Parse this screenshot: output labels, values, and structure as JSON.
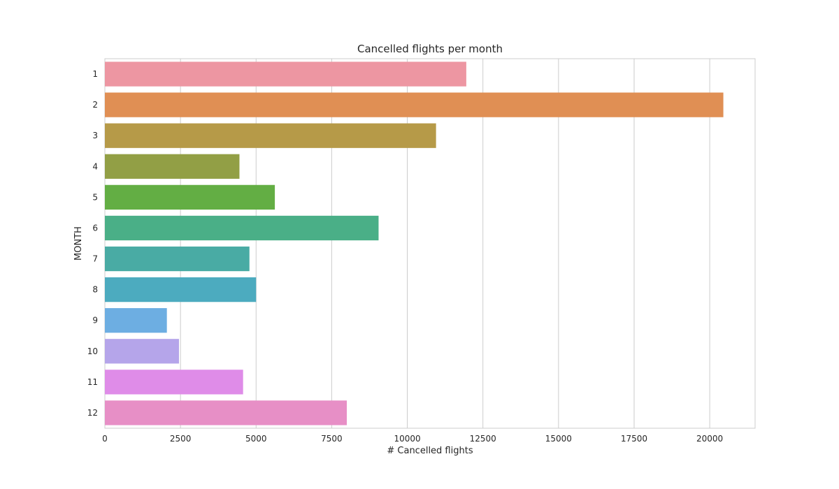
{
  "chart_data": {
    "type": "bar",
    "orientation": "horizontal",
    "title": "Cancelled flights per month",
    "xlabel": "# Cancelled flights",
    "ylabel": "MONTH",
    "categories": [
      "1",
      "2",
      "3",
      "4",
      "5",
      "6",
      "7",
      "8",
      "9",
      "10",
      "11",
      "12"
    ],
    "values": [
      11950,
      20450,
      10950,
      4450,
      5620,
      9050,
      4780,
      5000,
      2050,
      2450,
      4570,
      8000
    ],
    "colors": [
      "#ed96a2",
      "#e08f54",
      "#b69a48",
      "#929f45",
      "#63ae44",
      "#4aaf87",
      "#49aba4",
      "#4cabbf",
      "#6daee2",
      "#b5a5ea",
      "#df8ce8",
      "#e78fc6"
    ],
    "xlim": [
      0,
      21500
    ],
    "xticks": [
      0,
      2500,
      5000,
      7500,
      10000,
      12500,
      15000,
      17500,
      20000
    ],
    "grid": "vertical",
    "legend": "none"
  }
}
